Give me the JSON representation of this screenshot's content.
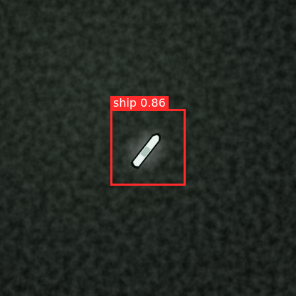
{
  "detections": [
    {
      "label": "ship",
      "confidence": 0.86,
      "label_text": "ship 0.86",
      "box_color": "#ff2a2a"
    }
  ],
  "colors": {
    "water": "#131a14",
    "vessel": "#e9f2ee"
  }
}
